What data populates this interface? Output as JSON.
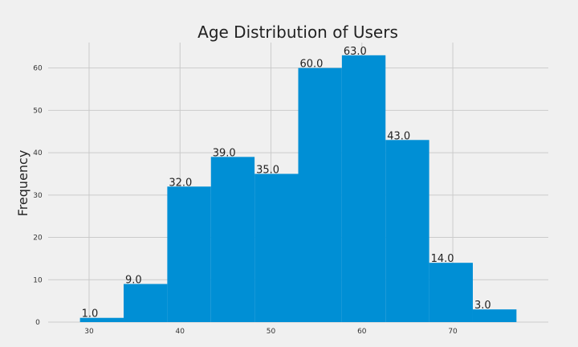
{
  "chart_data": {
    "type": "bar",
    "subtype": "histogram",
    "title": "Age Distribution of Users",
    "xlabel": "",
    "ylabel": "Frequency",
    "bin_edges": [
      29,
      33.8,
      38.6,
      43.4,
      48.2,
      53,
      57.8,
      62.6,
      67.4,
      72.2,
      77
    ],
    "values": [
      1,
      9,
      32,
      39,
      35,
      60,
      63,
      43,
      14,
      3
    ],
    "data_labels": [
      "1.0",
      "9.0",
      "32.0",
      "39.0",
      "35.0",
      "60.0",
      "63.0",
      "43.0",
      "14.0",
      "3.0"
    ],
    "xlim": [
      25.5,
      80.5
    ],
    "ylim": [
      0,
      66
    ],
    "x_ticks": [
      30,
      40,
      50,
      60,
      70
    ],
    "x_tick_labels": [
      "30",
      "40",
      "50",
      "60",
      "70"
    ],
    "y_ticks": [
      0,
      10,
      20,
      30,
      40,
      50,
      60
    ],
    "y_tick_labels": [
      "0",
      "10",
      "20",
      "30",
      "40",
      "50",
      "60"
    ],
    "grid": true,
    "bar_color": "#008fd5",
    "background_color": "#f0f0f0",
    "grid_color": "#cbcbcb"
  }
}
